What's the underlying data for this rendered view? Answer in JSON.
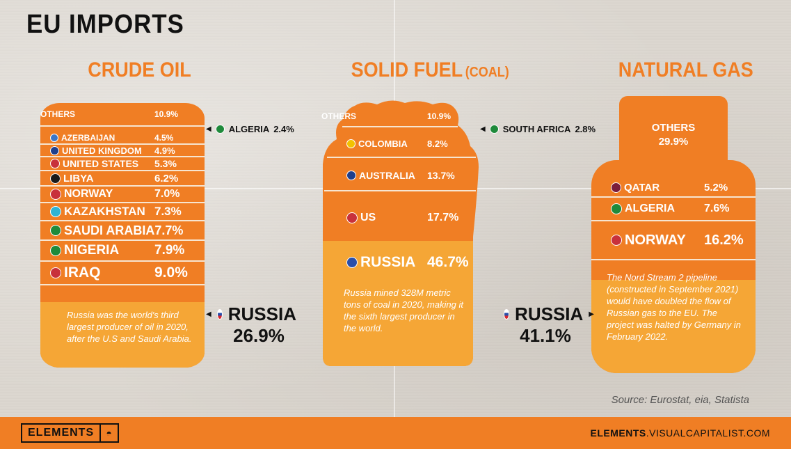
{
  "title": "EU IMPORTS",
  "columns": {
    "oil": {
      "title": "CRUDE OIL"
    },
    "coal": {
      "title": "SOLID FUEL",
      "subtitle": "(COAL)"
    },
    "gas": {
      "title": "NATURAL GAS"
    }
  },
  "colors": {
    "orange": "#f07e24",
    "light_orange": "#f5a636",
    "cream": "#f7e5d0",
    "ink": "#111111"
  },
  "chart_data": [
    {
      "type": "bar",
      "title": "CRUDE OIL",
      "categories": [
        "OTHERS",
        "ALGERIA",
        "AZERBAIJAN",
        "UNITED KINGDOM",
        "UNITED STATES",
        "LIBYA",
        "NORWAY",
        "KAZAKHSTAN",
        "SAUDI ARABIA",
        "NIGERIA",
        "IRAQ",
        "RUSSIA"
      ],
      "values": [
        10.9,
        2.4,
        4.5,
        4.9,
        5.3,
        6.2,
        7.0,
        7.3,
        7.7,
        7.9,
        9.0,
        26.9
      ],
      "labels": [
        "10.9%",
        "2.4%",
        "4.5%",
        "4.9%",
        "5.3%",
        "6.2%",
        "7.0%",
        "7.3%",
        "7.7%",
        "7.9%",
        "9.0%",
        "26.9%"
      ],
      "note": "Russia was the world's third largest producer of oil in 2020, after the U.S and Saudi Arabia."
    },
    {
      "type": "bar",
      "title": "SOLID FUEL (COAL)",
      "categories": [
        "OTHERS",
        "SOUTH AFRICA",
        "COLOMBIA",
        "AUSTRALIA",
        "US",
        "RUSSIA"
      ],
      "values": [
        10.9,
        2.8,
        8.2,
        13.7,
        17.7,
        46.7
      ],
      "labels": [
        "10.9%",
        "2.8%",
        "8.2%",
        "13.7%",
        "17.7%",
        "46.7%"
      ],
      "note": "Russia mined 328M metric tons of coal in 2020, making it the sixth largest producer in the world."
    },
    {
      "type": "bar",
      "title": "NATURAL GAS",
      "categories": [
        "OTHERS",
        "QATAR",
        "ALGERIA",
        "NORWAY",
        "RUSSIA"
      ],
      "values": [
        29.9,
        5.2,
        7.6,
        16.2,
        41.1
      ],
      "labels": [
        "29.9%",
        "5.2%",
        "7.6%",
        "16.2%",
        "41.1%"
      ],
      "note": "The Nord Stream 2 pipeline (constructed in September 2021) would have doubled the flow of Russian gas to the EU. The project was halted by Germany in February 2022."
    }
  ],
  "oil_rows": [
    {
      "name": "OTHERS",
      "pct": "10.9%",
      "flag": "",
      "size": 12
    },
    {
      "name": "AZERBAIJAN",
      "pct": "4.5%",
      "flag": "#3b76c8",
      "size": 12
    },
    {
      "name": "UNITED KINGDOM",
      "pct": "4.9%",
      "flag": "#1f3f8c",
      "size": 13
    },
    {
      "name": "UNITED STATES",
      "pct": "5.3%",
      "flag": "#c8313b",
      "size": 14
    },
    {
      "name": "LIBYA",
      "pct": "6.2%",
      "flag": "#1a1a1a",
      "size": 15
    },
    {
      "name": "NORWAY",
      "pct": "7.0%",
      "flag": "#c8313b",
      "size": 16
    },
    {
      "name": "KAZAKHSTAN",
      "pct": "7.3%",
      "flag": "#2fb3d3",
      "size": 17
    },
    {
      "name": "SAUDI ARABIA",
      "pct": "7.7%",
      "flag": "#1f8a3b",
      "size": 18
    },
    {
      "name": "NIGERIA",
      "pct": "7.9%",
      "flag": "#1f8a3b",
      "size": 19
    },
    {
      "name": "IRAQ",
      "pct": "9.0%",
      "flag": "#c8313b",
      "size": 21
    }
  ],
  "coal_rows": [
    {
      "name": "OTHERS",
      "pct": "10.9%",
      "flag": "",
      "size": 12
    },
    {
      "name": "COLOMBIA",
      "pct": "8.2%",
      "flag": "#f2c200",
      "size": 13
    },
    {
      "name": "AUSTRALIA",
      "pct": "13.7%",
      "flag": "#1f3f8c",
      "size": 14
    },
    {
      "name": "US",
      "pct": "17.7%",
      "flag": "#c8313b",
      "size": 16
    },
    {
      "name": "RUSSIA",
      "pct": "46.7%",
      "flag": "#2a4ea8",
      "size": 21
    }
  ],
  "gas_rows": [
    {
      "name": "OTHERS",
      "pct": "29.9%"
    },
    {
      "name": "QATAR",
      "pct": "5.2%",
      "flag": "#7a1d3a",
      "size": 15
    },
    {
      "name": "ALGERIA",
      "pct": "7.6%",
      "flag": "#1f8a3b",
      "size": 16
    },
    {
      "name": "NORWAY",
      "pct": "16.2%",
      "flag": "#c8313b",
      "size": 20
    }
  ],
  "callouts": {
    "oil_small": {
      "name": "ALGERIA",
      "pct": "2.4%",
      "flag": "#1f8a3b"
    },
    "coal_small": {
      "name": "SOUTH AFRICA",
      "pct": "2.8%",
      "flag": "#1f8a3b"
    },
    "oil_russia": {
      "name": "RUSSIA",
      "pct": "26.9%"
    },
    "gas_russia": {
      "name": "RUSSIA",
      "pct": "41.1%"
    }
  },
  "notes": {
    "oil": "Russia was the world's third largest producer of oil in 2020, after the U.S and Saudi Arabia.",
    "coal": "Russia mined 328M metric tons of coal in 2020, making it the sixth largest producer in the world.",
    "gas": "The Nord Stream 2 pipeline (constructed in September 2021) would have doubled the flow of Russian gas to the EU. The project was halted by Germany in February 2022."
  },
  "source": "Source: Eurostat, eia, Statista",
  "footer": {
    "logo": "ELEMENTS",
    "logo_icon": "elements-mark-icon",
    "site_bold": "ELEMENTS",
    "site_rest": ".VISUALCAPITALIST.COM"
  }
}
